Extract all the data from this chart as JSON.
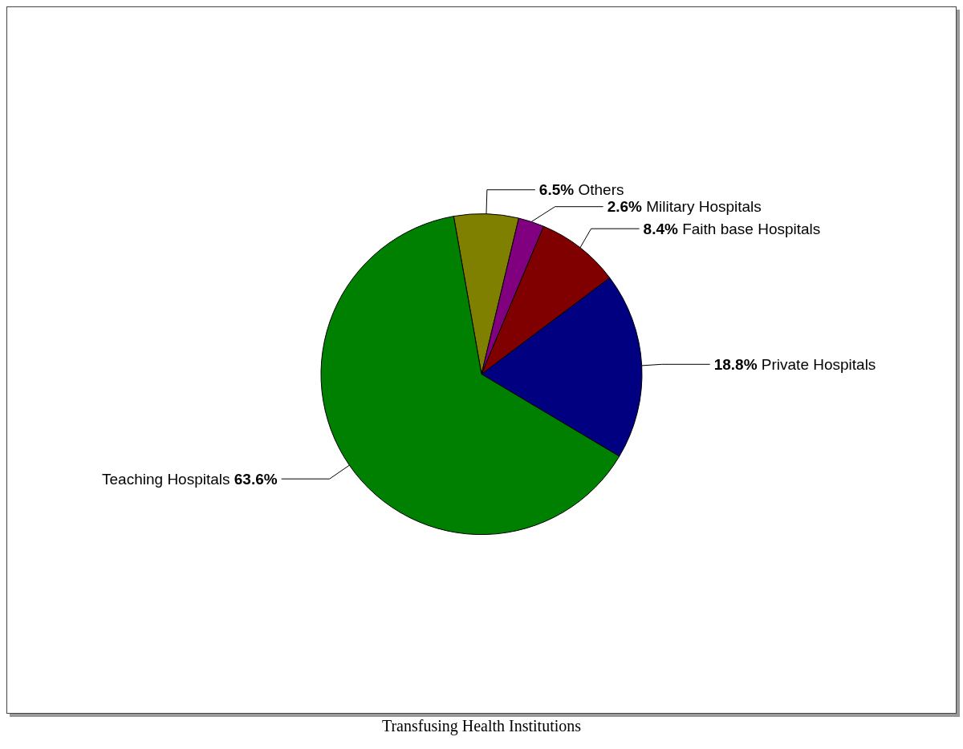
{
  "chart_data": {
    "type": "pie",
    "title": "Transfusing Health Institutions",
    "categories": [
      "Others",
      "Military Hospitals",
      "Faith base Hospitals",
      "Private Hospitals",
      "Teaching Hospitals"
    ],
    "values": [
      6.5,
      2.6,
      8.4,
      18.8,
      63.6
    ],
    "colors": [
      "#808000",
      "#800080",
      "#800000",
      "#000080",
      "#008000"
    ],
    "value_labels": [
      "6.5%",
      "2.6%",
      "8.4%",
      "18.8%",
      "63.6%"
    ],
    "legend": false
  }
}
